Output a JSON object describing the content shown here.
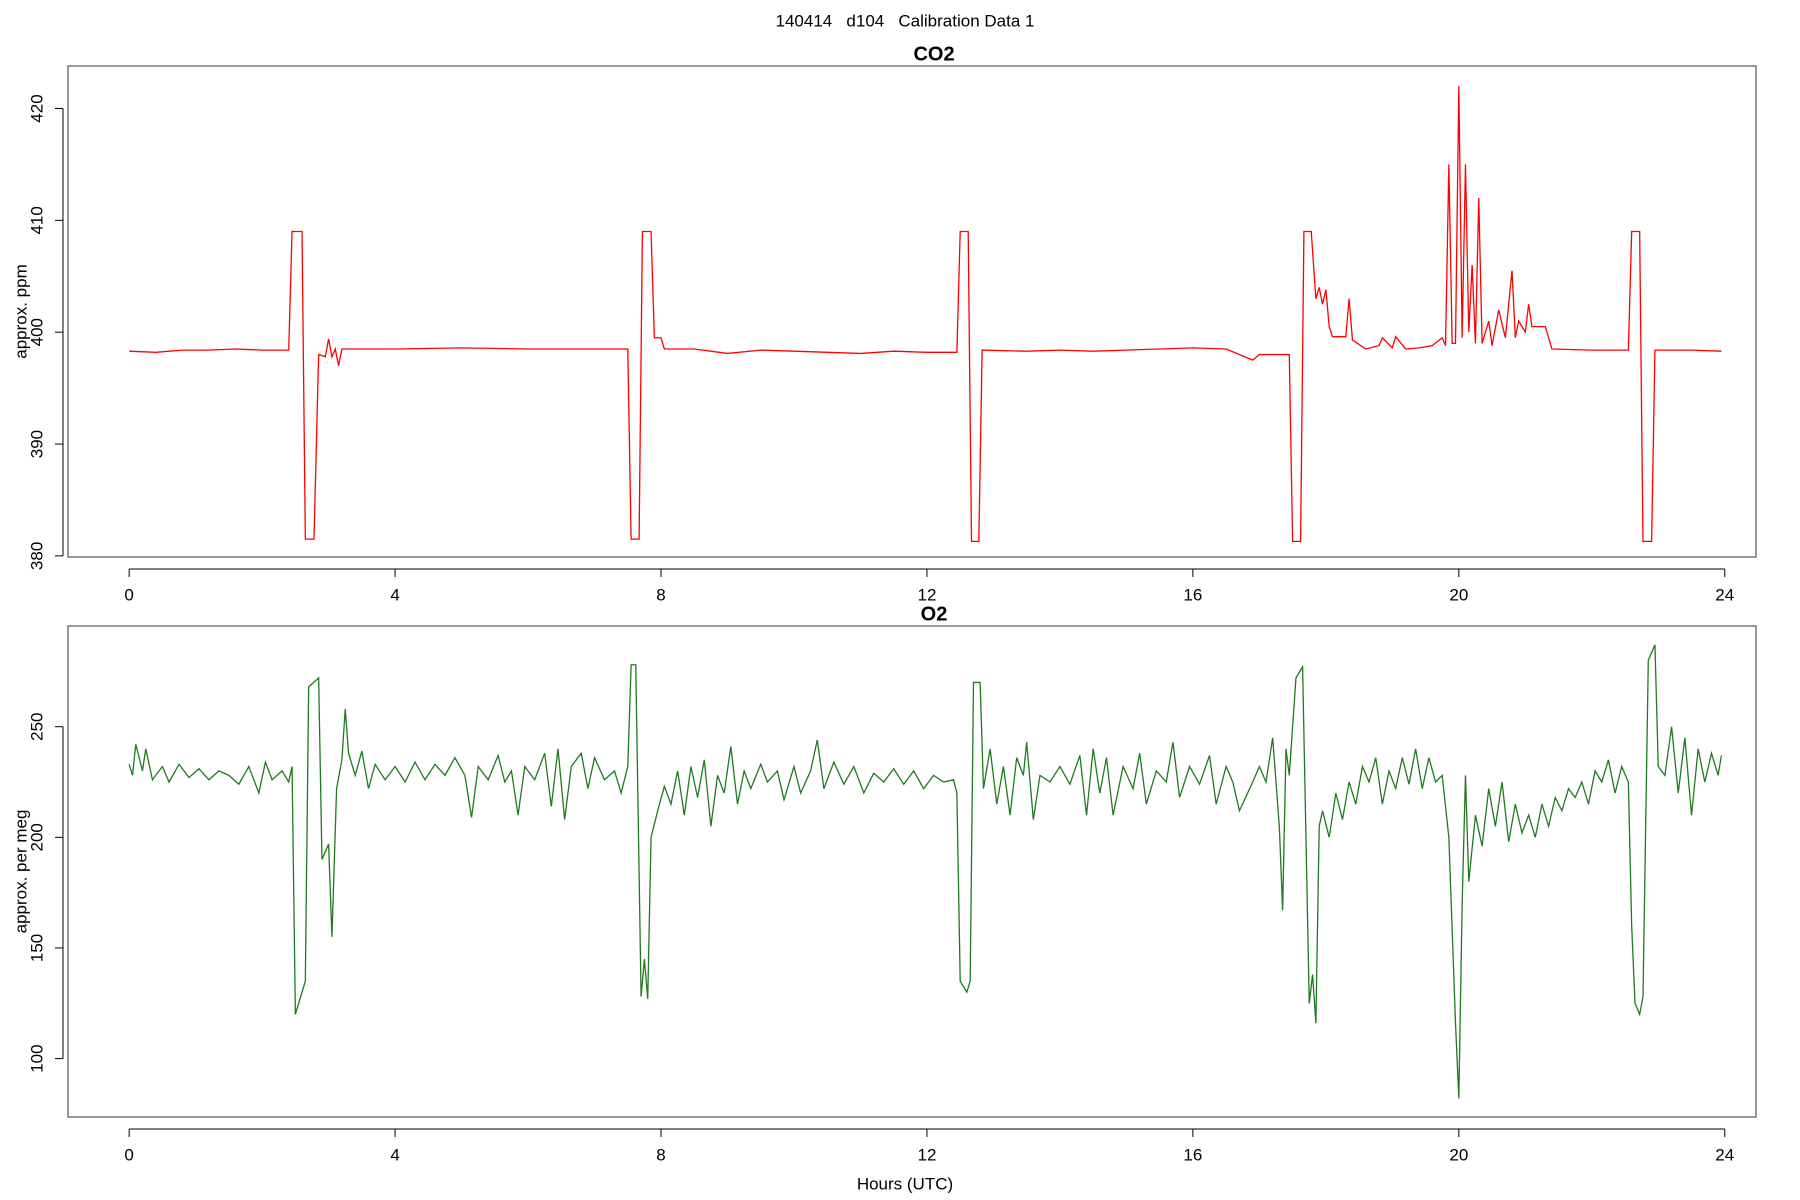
{
  "title": "140414   d104   Calibration Data 1",
  "chart_data": [
    {
      "type": "line",
      "title": "CO2",
      "ylabel": "approx. ppm",
      "color": "#ff0000",
      "xlim": [
        -0.92,
        24.47
      ],
      "xticks": [
        0,
        4,
        8,
        12,
        16,
        20,
        24
      ],
      "ylim": [
        379.9,
        423.8
      ],
      "yticks": [
        380,
        390,
        400,
        410,
        420
      ],
      "x": [
        0,
        0.4,
        0.8,
        1.2,
        1.6,
        2.0,
        2.4,
        2.45,
        2.6,
        2.65,
        2.78,
        2.85,
        2.95,
        3.0,
        3.05,
        3.1,
        3.15,
        3.2,
        3.6,
        4.0,
        5.0,
        6.0,
        7.0,
        7.5,
        7.55,
        7.67,
        7.72,
        7.85,
        7.9,
        8.0,
        8.05,
        8.5,
        9.0,
        9.5,
        10.0,
        10.5,
        11.0,
        11.5,
        12.0,
        12.45,
        12.5,
        12.62,
        12.67,
        12.78,
        12.83,
        13.5,
        14.0,
        14.5,
        15.0,
        15.5,
        16.0,
        16.5,
        16.9,
        17.0,
        17.45,
        17.5,
        17.62,
        17.67,
        17.78,
        17.85,
        17.9,
        17.95,
        18.0,
        18.05,
        18.1,
        18.3,
        18.35,
        18.4,
        18.6,
        18.8,
        18.85,
        19.0,
        19.05,
        19.2,
        19.4,
        19.6,
        19.75,
        19.8,
        19.85,
        19.9,
        19.95,
        20.0,
        20.05,
        20.1,
        20.15,
        20.2,
        20.25,
        20.3,
        20.35,
        20.45,
        20.5,
        20.6,
        20.7,
        20.8,
        20.85,
        20.9,
        21.0,
        21.05,
        21.1,
        21.3,
        21.4,
        22.0,
        22.55,
        22.6,
        22.72,
        22.77,
        22.9,
        22.95,
        23.5,
        23.95
      ],
      "values": [
        398.3,
        398.2,
        398.4,
        398.4,
        398.5,
        398.4,
        398.4,
        409,
        409,
        381.5,
        381.5,
        398,
        397.8,
        399.4,
        397.8,
        398.5,
        397,
        398.5,
        398.5,
        398.5,
        398.6,
        398.5,
        398.5,
        398.5,
        381.5,
        381.5,
        409,
        409,
        399.5,
        399.5,
        398.5,
        398.5,
        398.1,
        398.4,
        398.3,
        398.2,
        398.1,
        398.3,
        398.2,
        398.2,
        409,
        409,
        381.3,
        381.3,
        398.4,
        398.3,
        398.4,
        398.3,
        398.4,
        398.5,
        398.6,
        398.5,
        397.5,
        398,
        398,
        381.3,
        381.3,
        409,
        409,
        403,
        404,
        402.5,
        403.8,
        400.5,
        399.6,
        399.6,
        403,
        399.3,
        398.5,
        398.8,
        399.5,
        398.6,
        399.6,
        398.5,
        398.6,
        398.8,
        399.5,
        398.8,
        415,
        399,
        399,
        422,
        399.5,
        415,
        400,
        406,
        399,
        412,
        399,
        401,
        398.8,
        402,
        399.5,
        405.5,
        399.5,
        401,
        400,
        402.5,
        400.5,
        400.5,
        398.5,
        398.4,
        398.4,
        409,
        409,
        381.3,
        381.3,
        398.4,
        398.4,
        398.3
      ]
    },
    {
      "type": "line",
      "title": "O2",
      "ylabel": "approx. per meg",
      "xlabel": "Hours (UTC)",
      "color": "#1f7a1f",
      "xlim": [
        -0.92,
        24.47
      ],
      "xticks": [
        0,
        4,
        8,
        12,
        16,
        20,
        24
      ],
      "ylim": [
        73.6,
        295.5
      ],
      "yticks": [
        100,
        150,
        200,
        250
      ],
      "x": [
        0,
        0.05,
        0.1,
        0.2,
        0.25,
        0.35,
        0.5,
        0.6,
        0.75,
        0.9,
        1.05,
        1.2,
        1.35,
        1.5,
        1.65,
        1.8,
        1.95,
        2.05,
        2.15,
        2.3,
        2.4,
        2.45,
        2.5,
        2.6,
        2.65,
        2.7,
        2.85,
        2.9,
        3.0,
        3.05,
        3.12,
        3.2,
        3.25,
        3.3,
        3.4,
        3.5,
        3.6,
        3.7,
        3.85,
        4.0,
        4.15,
        4.3,
        4.45,
        4.6,
        4.75,
        4.9,
        5.05,
        5.15,
        5.25,
        5.4,
        5.55,
        5.65,
        5.75,
        5.85,
        5.95,
        6.1,
        6.25,
        6.35,
        6.45,
        6.55,
        6.65,
        6.8,
        6.9,
        7.0,
        7.15,
        7.3,
        7.4,
        7.5,
        7.55,
        7.62,
        7.7,
        7.75,
        7.8,
        7.85,
        7.95,
        8.05,
        8.15,
        8.25,
        8.35,
        8.45,
        8.55,
        8.65,
        8.75,
        8.85,
        8.95,
        9.05,
        9.15,
        9.25,
        9.35,
        9.5,
        9.6,
        9.75,
        9.85,
        10.0,
        10.1,
        10.25,
        10.35,
        10.45,
        10.6,
        10.75,
        10.9,
        11.05,
        11.2,
        11.35,
        11.5,
        11.65,
        11.8,
        11.95,
        12.1,
        12.25,
        12.4,
        12.45,
        12.5,
        12.6,
        12.65,
        12.7,
        12.8,
        12.85,
        12.95,
        13.05,
        13.15,
        13.25,
        13.35,
        13.45,
        13.5,
        13.6,
        13.7,
        13.85,
        14.0,
        14.15,
        14.3,
        14.4,
        14.5,
        14.6,
        14.7,
        14.8,
        14.95,
        15.1,
        15.2,
        15.3,
        15.45,
        15.6,
        15.7,
        15.8,
        15.95,
        16.1,
        16.25,
        16.35,
        16.5,
        16.6,
        16.7,
        16.9,
        17.0,
        17.1,
        17.2,
        17.3,
        17.35,
        17.4,
        17.45,
        17.55,
        17.65,
        17.75,
        17.8,
        17.85,
        17.9,
        17.95,
        18.05,
        18.15,
        18.25,
        18.35,
        18.45,
        18.55,
        18.65,
        18.75,
        18.85,
        18.95,
        19.05,
        19.15,
        19.25,
        19.35,
        19.45,
        19.55,
        19.65,
        19.75,
        19.85,
        19.95,
        20.0,
        20.05,
        20.1,
        20.15,
        20.25,
        20.35,
        20.45,
        20.55,
        20.65,
        20.75,
        20.85,
        20.95,
        21.05,
        21.15,
        21.25,
        21.35,
        21.45,
        21.55,
        21.65,
        21.75,
        21.85,
        21.95,
        22.05,
        22.15,
        22.25,
        22.35,
        22.45,
        22.55,
        22.6,
        22.65,
        22.72,
        22.77,
        22.85,
        22.95,
        23.0,
        23.1,
        23.2,
        23.3,
        23.4,
        23.5,
        23.6,
        23.7,
        23.8,
        23.9,
        23.95
      ],
      "values": [
        233,
        228,
        242,
        230,
        240,
        226,
        232,
        225,
        233,
        227,
        231,
        226,
        230,
        228,
        224,
        232,
        220,
        234,
        226,
        230,
        225,
        232,
        120,
        130,
        135,
        268,
        272,
        190,
        197,
        155,
        222,
        235,
        258,
        238,
        228,
        239,
        222,
        233,
        226,
        232,
        225,
        234,
        226,
        233,
        228,
        236,
        228,
        209,
        232,
        226,
        237,
        225,
        230,
        210,
        232,
        226,
        238,
        214,
        240,
        208,
        232,
        238,
        222,
        236,
        226,
        230,
        220,
        232,
        278,
        278,
        128,
        145,
        127,
        200,
        212,
        223,
        215,
        230,
        210,
        232,
        218,
        235,
        205,
        228,
        220,
        241,
        215,
        230,
        222,
        233,
        225,
        230,
        217,
        232,
        220,
        230,
        244,
        222,
        234,
        224,
        232,
        220,
        229,
        225,
        231,
        224,
        230,
        222,
        228,
        225,
        226,
        220,
        135,
        130,
        135,
        270,
        270,
        222,
        240,
        215,
        232,
        210,
        236,
        228,
        243,
        208,
        228,
        225,
        232,
        224,
        237,
        210,
        240,
        220,
        236,
        210,
        232,
        222,
        238,
        215,
        230,
        225,
        243,
        218,
        232,
        224,
        237,
        215,
        232,
        225,
        212,
        225,
        232,
        225,
        245,
        205,
        167,
        240,
        228,
        272,
        277,
        125,
        138,
        116,
        205,
        212,
        200,
        220,
        208,
        225,
        215,
        232,
        225,
        236,
        215,
        230,
        222,
        236,
        224,
        240,
        222,
        236,
        225,
        228,
        200,
        116,
        82,
        170,
        228,
        180,
        210,
        196,
        222,
        205,
        225,
        198,
        215,
        202,
        210,
        200,
        215,
        205,
        218,
        212,
        222,
        218,
        225,
        215,
        230,
        225,
        235,
        220,
        232,
        225,
        160,
        125,
        120,
        128,
        280,
        287,
        232,
        228,
        250,
        220,
        245,
        210,
        240,
        225,
        238,
        228,
        237
      ]
    }
  ]
}
